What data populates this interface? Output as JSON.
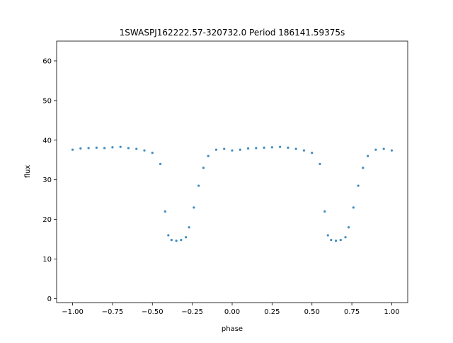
{
  "chart_data": {
    "type": "scatter",
    "title": "1SWASPJ162222.57-320732.0 Period 186141.59375s",
    "xlabel": "phase",
    "ylabel": "flux",
    "xlim": [
      -1.1,
      1.1
    ],
    "ylim": [
      -1.0,
      65.0
    ],
    "x_ticks": [
      -1.0,
      -0.75,
      -0.5,
      -0.25,
      0.0,
      0.25,
      0.5,
      0.75,
      1.0
    ],
    "x_tick_labels": [
      "−1.00",
      "−0.75",
      "−0.50",
      "−0.25",
      "0.00",
      "0.25",
      "0.50",
      "0.75",
      "1.00"
    ],
    "y_ticks": [
      0,
      10,
      20,
      30,
      40,
      50,
      60
    ],
    "y_tick_labels": [
      "0",
      "10",
      "20",
      "30",
      "40",
      "50",
      "60"
    ],
    "grid": false,
    "marker_color": "#1f77b4",
    "series": [
      {
        "values": [
          [
            -1.0,
            37.6
          ],
          [
            -0.95,
            37.9
          ],
          [
            -0.9,
            38.0
          ],
          [
            -0.85,
            38.1
          ],
          [
            -0.8,
            38.0
          ],
          [
            -0.75,
            38.2
          ],
          [
            -0.7,
            38.3
          ],
          [
            -0.65,
            38.0
          ],
          [
            -0.6,
            37.8
          ],
          [
            -0.55,
            37.4
          ],
          [
            -0.5,
            36.8
          ],
          [
            -0.45,
            34.0
          ],
          [
            -0.42,
            22.0
          ],
          [
            -0.4,
            16.0
          ],
          [
            -0.38,
            14.8
          ],
          [
            -0.35,
            14.6
          ],
          [
            -0.32,
            14.8
          ],
          [
            -0.29,
            15.5
          ],
          [
            -0.27,
            18.0
          ],
          [
            -0.24,
            23.0
          ],
          [
            -0.21,
            28.5
          ],
          [
            -0.18,
            33.0
          ],
          [
            -0.15,
            36.0
          ],
          [
            -0.1,
            37.6
          ],
          [
            -0.05,
            37.8
          ],
          [
            0.0,
            37.4
          ],
          [
            0.05,
            37.6
          ],
          [
            0.1,
            37.9
          ],
          [
            0.15,
            38.0
          ],
          [
            0.2,
            38.1
          ],
          [
            0.25,
            38.2
          ],
          [
            0.3,
            38.3
          ],
          [
            0.35,
            38.1
          ],
          [
            0.4,
            37.8
          ],
          [
            0.45,
            37.4
          ],
          [
            0.5,
            36.8
          ],
          [
            0.55,
            34.0
          ],
          [
            0.58,
            22.0
          ],
          [
            0.6,
            16.0
          ],
          [
            0.62,
            14.8
          ],
          [
            0.65,
            14.6
          ],
          [
            0.68,
            14.8
          ],
          [
            0.71,
            15.5
          ],
          [
            0.73,
            18.0
          ],
          [
            0.76,
            23.0
          ],
          [
            0.79,
            28.5
          ],
          [
            0.82,
            33.0
          ],
          [
            0.85,
            36.0
          ],
          [
            0.9,
            37.6
          ],
          [
            0.95,
            37.8
          ],
          [
            1.0,
            37.4
          ]
        ]
      }
    ]
  }
}
